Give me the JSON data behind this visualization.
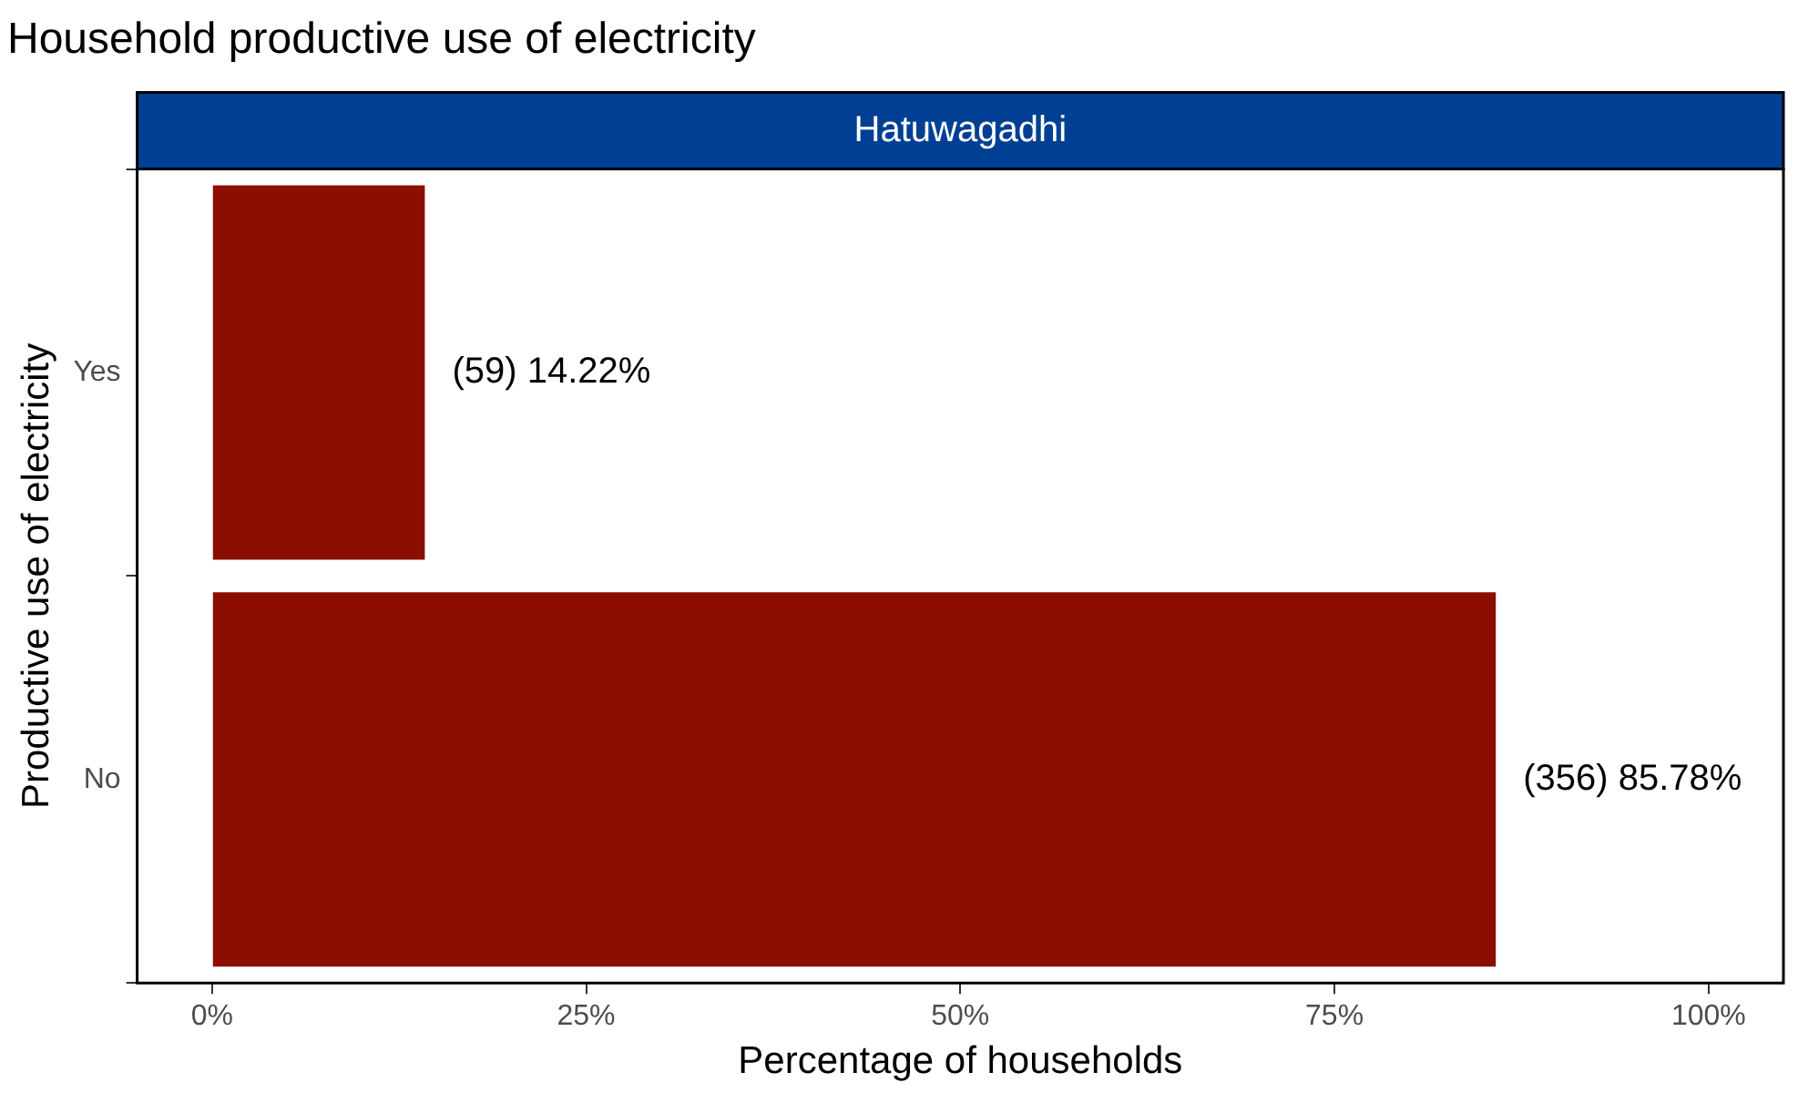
{
  "chart_data": {
    "type": "bar",
    "orientation": "horizontal",
    "title": "Household productive use of electricity",
    "subtitle": "Hatuwagadhi",
    "xlabel": "Percentage of households",
    "ylabel": "Productive use of electricity",
    "categories": [
      "Yes",
      "No"
    ],
    "values": [
      14.22,
      85.78
    ],
    "value_labels": [
      "(59) 14.22%",
      "(356) 85.78%"
    ],
    "color": "#8b0e00",
    "xlim": [
      -5,
      105
    ],
    "xticks": [
      {
        "value": 0,
        "label": "0%"
      },
      {
        "value": 25,
        "label": "25%"
      },
      {
        "value": 50,
        "label": "50%"
      },
      {
        "value": 75,
        "label": "75%"
      },
      {
        "value": 100,
        "label": "100%"
      }
    ],
    "grid": false,
    "legend": false
  }
}
